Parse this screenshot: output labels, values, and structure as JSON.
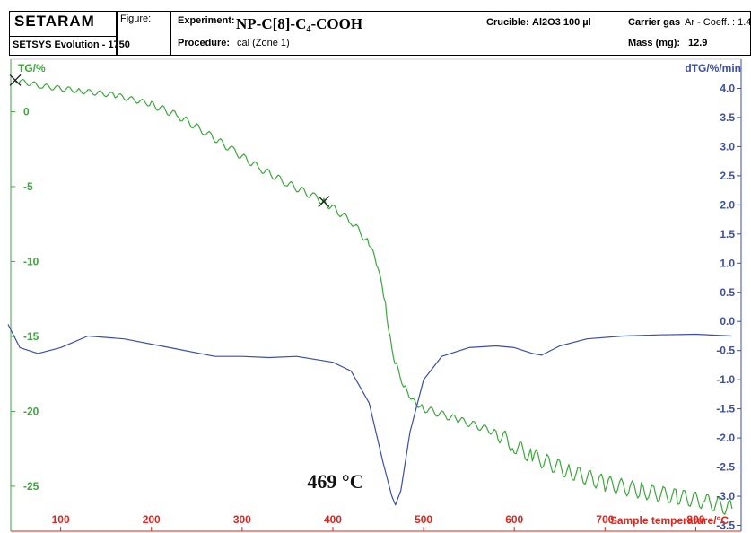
{
  "header": {
    "logo": "SETARAM",
    "software": "SETSYS Evolution - 1750",
    "figure_label": "Figure:",
    "experiment_label": "Experiment:",
    "experiment_value": "NP-C[8]-C₄-COOH",
    "procedure_label": "Procedure:",
    "procedure_value": "cal (Zone 1)",
    "crucible_label": "Crucible:",
    "crucible_value": "Al2O3 100 µl",
    "carrier_gas_label": "Carrier gas",
    "carrier_gas_value": "Ar - Coeff. : 1.4",
    "mass_label": "Mass (mg):",
    "mass_value": "12.9"
  },
  "chart_data": {
    "type": "line",
    "xlabel": "Sample temperature/°C",
    "ylabel_left": "TG/%",
    "ylabel_right": "dTG/%/min",
    "x_ticks": [
      100,
      200,
      300,
      400,
      500,
      600,
      700,
      800
    ],
    "y_left_ticks": [
      0,
      -5,
      -10,
      -15,
      -20,
      -25
    ],
    "y_right_ticks": [
      4.0,
      3.5,
      3.0,
      2.5,
      2.0,
      1.5,
      1.0,
      0.5,
      0.0,
      -0.5,
      -1.0,
      -1.5,
      -2.0,
      -2.5,
      -3.0,
      -3.5
    ],
    "y_right_tick_labels": [
      "4.0",
      "3.5",
      "3.0",
      "2.5",
      "2.0",
      "1.5",
      "1.0",
      "0.5",
      "0.0",
      "-0.5",
      "-1.0",
      "-1.5",
      "-2.0",
      "-2.5",
      "-3.0",
      "-3.5"
    ],
    "xlim": [
      45,
      850
    ],
    "ylim_left": [
      -28,
      3.5
    ],
    "ylim_right": [
      -3.6,
      4.5
    ],
    "annotation": "469 °C",
    "annotation_x": 469,
    "series": [
      {
        "axis": "left",
        "color": "#3aa83a",
        "points": [
          [
            50,
            2.1
          ],
          [
            80,
            1.7
          ],
          [
            120,
            1.4
          ],
          [
            160,
            1.1
          ],
          [
            200,
            0.5
          ],
          [
            230,
            -0.3
          ],
          [
            260,
            -1.4
          ],
          [
            290,
            -2.6
          ],
          [
            320,
            -3.8
          ],
          [
            350,
            -4.8
          ],
          [
            380,
            -5.7
          ],
          [
            390,
            -6.0
          ],
          [
            420,
            -7.3
          ],
          [
            440,
            -8.8
          ],
          [
            450,
            -10.5
          ],
          [
            458,
            -13.0
          ],
          [
            465,
            -16.0
          ],
          [
            470,
            -17.0
          ],
          [
            480,
            -18.5
          ],
          [
            490,
            -19.3
          ],
          [
            500,
            -19.8
          ],
          [
            540,
            -20.6
          ],
          [
            580,
            -21.4
          ],
          [
            600,
            -22.3
          ],
          [
            620,
            -23.0
          ],
          [
            660,
            -24.0
          ],
          [
            700,
            -24.8
          ],
          [
            740,
            -25.3
          ],
          [
            780,
            -25.7
          ],
          [
            810,
            -26.0
          ],
          [
            840,
            -26.5
          ]
        ],
        "markers_x": [
          50,
          390
        ]
      },
      {
        "axis": "right",
        "color": "#3b4ea8",
        "points": [
          [
            42,
            -0.05
          ],
          [
            55,
            -0.45
          ],
          [
            75,
            -0.55
          ],
          [
            100,
            -0.45
          ],
          [
            130,
            -0.25
          ],
          [
            170,
            -0.3
          ],
          [
            220,
            -0.45
          ],
          [
            270,
            -0.6
          ],
          [
            300,
            -0.6
          ],
          [
            330,
            -0.62
          ],
          [
            360,
            -0.6
          ],
          [
            400,
            -0.7
          ],
          [
            420,
            -0.85
          ],
          [
            440,
            -1.4
          ],
          [
            455,
            -2.4
          ],
          [
            465,
            -3.0
          ],
          [
            469,
            -3.15
          ],
          [
            475,
            -2.9
          ],
          [
            485,
            -1.9
          ],
          [
            500,
            -1.0
          ],
          [
            520,
            -0.6
          ],
          [
            550,
            -0.45
          ],
          [
            580,
            -0.42
          ],
          [
            600,
            -0.45
          ],
          [
            620,
            -0.55
          ],
          [
            630,
            -0.58
          ],
          [
            650,
            -0.42
          ],
          [
            680,
            -0.3
          ],
          [
            720,
            -0.25
          ],
          [
            760,
            -0.23
          ],
          [
            800,
            -0.22
          ],
          [
            840,
            -0.25
          ]
        ]
      }
    ],
    "colors": {
      "left_axis": "#3aa83a",
      "right_axis": "#3b4ea8",
      "x_ticks": "#e2231a"
    }
  }
}
